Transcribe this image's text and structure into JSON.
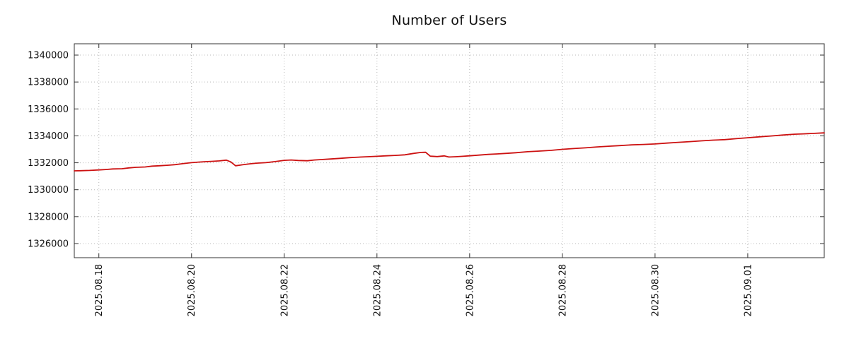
{
  "chart_data": {
    "type": "line",
    "title": "Number of Users",
    "xlabel": "",
    "ylabel": "",
    "grid": true,
    "legend": "none",
    "x_note": "x values are days, day 1 = 2025.08.18 00:00",
    "x_domain": [
      0.47,
      16.65
    ],
    "y_domain": [
      1324950,
      1340840
    ],
    "x_ticks": [
      {
        "day": 1,
        "label": "2025.08.18"
      },
      {
        "day": 3,
        "label": "2025.08.20"
      },
      {
        "day": 5,
        "label": "2025.08.22"
      },
      {
        "day": 7,
        "label": "2025.08.24"
      },
      {
        "day": 9,
        "label": "2025.08.26"
      },
      {
        "day": 11,
        "label": "2025.08.28"
      },
      {
        "day": 13,
        "label": "2025.08.30"
      },
      {
        "day": 15,
        "label": "2025.09.01"
      }
    ],
    "y_ticks": [
      {
        "value": 1326000,
        "label": "1326000"
      },
      {
        "value": 1328000,
        "label": "1328000"
      },
      {
        "value": 1330000,
        "label": "1330000"
      },
      {
        "value": 1332000,
        "label": "1332000"
      },
      {
        "value": 1334000,
        "label": "1334000"
      },
      {
        "value": 1336000,
        "label": "1336000"
      },
      {
        "value": 1338000,
        "label": "1338000"
      },
      {
        "value": 1340000,
        "label": "1340000"
      }
    ],
    "colors": {
      "line": "#cc1111",
      "grid": "#b8b8b8",
      "border": "#333333",
      "text": "#111111",
      "background": "#ffffff"
    },
    "series": [
      {
        "name": "Number of Users",
        "color": "#cc1111",
        "points": [
          [
            0.47,
            1331400
          ],
          [
            0.6,
            1331410
          ],
          [
            0.8,
            1331430
          ],
          [
            1.0,
            1331470
          ],
          [
            1.15,
            1331500
          ],
          [
            1.3,
            1331540
          ],
          [
            1.5,
            1331560
          ],
          [
            1.65,
            1331620
          ],
          [
            1.8,
            1331660
          ],
          [
            2.0,
            1331690
          ],
          [
            2.15,
            1331750
          ],
          [
            2.3,
            1331780
          ],
          [
            2.5,
            1331820
          ],
          [
            2.65,
            1331860
          ],
          [
            2.8,
            1331930
          ],
          [
            3.0,
            1332010
          ],
          [
            3.15,
            1332050
          ],
          [
            3.3,
            1332080
          ],
          [
            3.45,
            1332110
          ],
          [
            3.6,
            1332140
          ],
          [
            3.75,
            1332200
          ],
          [
            3.85,
            1332060
          ],
          [
            3.95,
            1331780
          ],
          [
            4.1,
            1331850
          ],
          [
            4.25,
            1331920
          ],
          [
            4.4,
            1331970
          ],
          [
            4.6,
            1332010
          ],
          [
            4.8,
            1332090
          ],
          [
            5.0,
            1332180
          ],
          [
            5.15,
            1332210
          ],
          [
            5.3,
            1332170
          ],
          [
            5.5,
            1332150
          ],
          [
            5.65,
            1332210
          ],
          [
            5.8,
            1332240
          ],
          [
            6.0,
            1332280
          ],
          [
            6.2,
            1332330
          ],
          [
            6.4,
            1332380
          ],
          [
            6.6,
            1332420
          ],
          [
            6.8,
            1332450
          ],
          [
            7.0,
            1332480
          ],
          [
            7.2,
            1332520
          ],
          [
            7.4,
            1332550
          ],
          [
            7.6,
            1332590
          ],
          [
            7.8,
            1332700
          ],
          [
            7.95,
            1332770
          ],
          [
            8.05,
            1332780
          ],
          [
            8.15,
            1332490
          ],
          [
            8.3,
            1332460
          ],
          [
            8.45,
            1332510
          ],
          [
            8.55,
            1332430
          ],
          [
            8.7,
            1332450
          ],
          [
            8.85,
            1332480
          ],
          [
            9.0,
            1332520
          ],
          [
            9.2,
            1332570
          ],
          [
            9.4,
            1332620
          ],
          [
            9.6,
            1332660
          ],
          [
            9.8,
            1332700
          ],
          [
            10.0,
            1332750
          ],
          [
            10.25,
            1332820
          ],
          [
            10.5,
            1332870
          ],
          [
            10.75,
            1332920
          ],
          [
            11.0,
            1333000
          ],
          [
            11.25,
            1333060
          ],
          [
            11.5,
            1333110
          ],
          [
            11.75,
            1333180
          ],
          [
            12.0,
            1333230
          ],
          [
            12.25,
            1333280
          ],
          [
            12.5,
            1333330
          ],
          [
            12.75,
            1333360
          ],
          [
            13.0,
            1333400
          ],
          [
            13.25,
            1333460
          ],
          [
            13.5,
            1333520
          ],
          [
            13.75,
            1333570
          ],
          [
            14.0,
            1333630
          ],
          [
            14.25,
            1333680
          ],
          [
            14.5,
            1333720
          ],
          [
            14.75,
            1333790
          ],
          [
            15.0,
            1333860
          ],
          [
            15.25,
            1333930
          ],
          [
            15.5,
            1333990
          ],
          [
            15.75,
            1334060
          ],
          [
            16.0,
            1334120
          ],
          [
            16.2,
            1334150
          ],
          [
            16.4,
            1334180
          ],
          [
            16.65,
            1334220
          ]
        ]
      }
    ]
  }
}
